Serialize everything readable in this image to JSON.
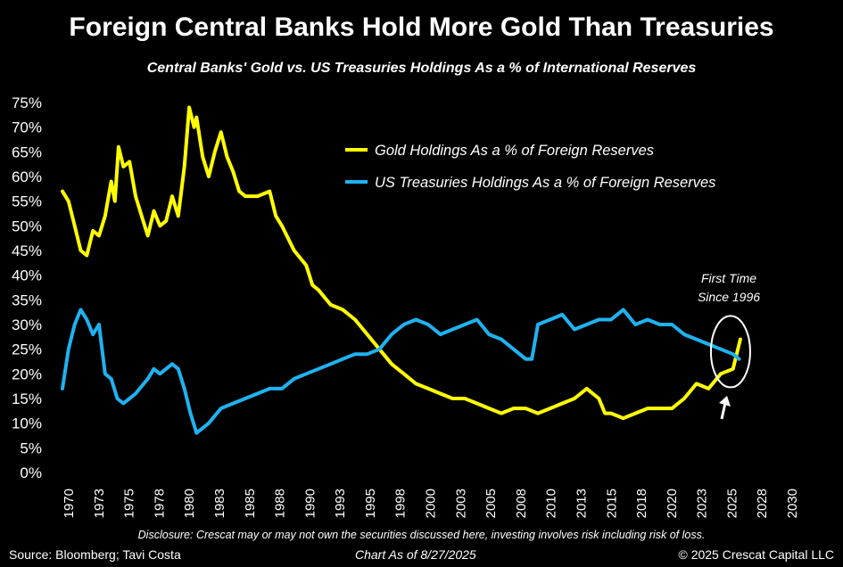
{
  "header": {
    "title": "Foreign Central Banks Hold More Gold Than Treasuries",
    "subtitle": "Central Banks' Gold vs. US Treasuries Holdings As a % of International Reserves"
  },
  "footer": {
    "source": "Source: Bloomberg; Tavi Costa",
    "as_of": "Chart As of 8/27/2025",
    "copyright": "© 2025 Crescat Capital LLC",
    "disclosure": "Disclosure: Crescat may or may not own the securities discussed here, investing involves risk including risk of loss."
  },
  "chart_data": {
    "type": "line",
    "title": "Foreign Central Banks Hold More Gold Than Treasuries",
    "subtitle": "Central Banks' Gold vs. US Treasuries Holdings As a % of International Reserves",
    "xlim": [
      1970,
      2030
    ],
    "ylim": [
      0,
      75
    ],
    "x_ticks": [
      "1970",
      "1973",
      "1975",
      "1978",
      "1980",
      "1983",
      "1985",
      "1988",
      "1990",
      "1993",
      "1995",
      "1998",
      "2000",
      "2003",
      "2005",
      "2008",
      "2010",
      "2013",
      "2015",
      "2018",
      "2020",
      "2023",
      "2025",
      "2028",
      "2030"
    ],
    "y_ticks": [
      "0%",
      "5%",
      "10%",
      "15%",
      "20%",
      "25%",
      "30%",
      "35%",
      "40%",
      "45%",
      "50%",
      "55%",
      "60%",
      "65%",
      "70%",
      "75%"
    ],
    "grid": false,
    "legend_position": "top-right",
    "annotation": {
      "text_line1": "First Time",
      "text_line2": "Since 1996",
      "x": 2024.8,
      "y": 24.5
    },
    "series": [
      {
        "name": "Gold Holdings As a % of Foreign Reserves",
        "color": "#ffff00",
        "points": [
          [
            1970,
            57
          ],
          [
            1970.5,
            55
          ],
          [
            1971,
            50
          ],
          [
            1971.5,
            45
          ],
          [
            1972,
            44
          ],
          [
            1972.5,
            49
          ],
          [
            1973,
            48
          ],
          [
            1973.5,
            52
          ],
          [
            1974,
            59
          ],
          [
            1974.3,
            55
          ],
          [
            1974.6,
            66
          ],
          [
            1975,
            62
          ],
          [
            1975.5,
            63
          ],
          [
            1976,
            56
          ],
          [
            1976.5,
            52
          ],
          [
            1977,
            48
          ],
          [
            1977.5,
            53
          ],
          [
            1978,
            50
          ],
          [
            1978.5,
            51
          ],
          [
            1979,
            56
          ],
          [
            1979.5,
            52
          ],
          [
            1980,
            62
          ],
          [
            1980.4,
            74
          ],
          [
            1980.8,
            70
          ],
          [
            1981,
            72
          ],
          [
            1981.5,
            64
          ],
          [
            1982,
            60
          ],
          [
            1982.5,
            65
          ],
          [
            1983,
            69
          ],
          [
            1983.5,
            64
          ],
          [
            1984,
            61
          ],
          [
            1984.5,
            57
          ],
          [
            1985,
            56
          ],
          [
            1986,
            56
          ],
          [
            1987,
            57
          ],
          [
            1987.5,
            52
          ],
          [
            1988,
            50
          ],
          [
            1989,
            45
          ],
          [
            1990,
            42
          ],
          [
            1990.5,
            38
          ],
          [
            1991,
            37
          ],
          [
            1992,
            34
          ],
          [
            1993,
            33
          ],
          [
            1994,
            31
          ],
          [
            1995,
            28
          ],
          [
            1996,
            25
          ],
          [
            1997,
            22
          ],
          [
            1998,
            20
          ],
          [
            1999,
            18
          ],
          [
            2000,
            17
          ],
          [
            2001,
            16
          ],
          [
            2002,
            15
          ],
          [
            2003,
            15
          ],
          [
            2004,
            14
          ],
          [
            2005,
            13
          ],
          [
            2006,
            12
          ],
          [
            2007,
            13
          ],
          [
            2008,
            13
          ],
          [
            2009,
            12
          ],
          [
            2010,
            13
          ],
          [
            2011,
            14
          ],
          [
            2012,
            15
          ],
          [
            2013,
            17
          ],
          [
            2014,
            15
          ],
          [
            2014.5,
            12
          ],
          [
            2015,
            12
          ],
          [
            2016,
            11
          ],
          [
            2017,
            12
          ],
          [
            2018,
            13
          ],
          [
            2019,
            13
          ],
          [
            2020,
            13
          ],
          [
            2020.5,
            14
          ],
          [
            2021,
            15
          ],
          [
            2022,
            18
          ],
          [
            2023,
            17
          ],
          [
            2024,
            20
          ],
          [
            2025,
            21
          ],
          [
            2025.3,
            24
          ],
          [
            2025.6,
            27
          ]
        ]
      },
      {
        "name": "US Treasuries Holdings As a % of Foreign Reserves",
        "color": "#1fb2f0",
        "points": [
          [
            1970,
            17
          ],
          [
            1970.5,
            25
          ],
          [
            1971,
            30
          ],
          [
            1971.5,
            33
          ],
          [
            1972,
            31
          ],
          [
            1972.5,
            28
          ],
          [
            1973,
            30
          ],
          [
            1973.5,
            20
          ],
          [
            1974,
            19
          ],
          [
            1974.5,
            15
          ],
          [
            1975,
            14
          ],
          [
            1975.5,
            15
          ],
          [
            1976,
            16
          ],
          [
            1977,
            19
          ],
          [
            1977.5,
            21
          ],
          [
            1978,
            20
          ],
          [
            1979,
            22
          ],
          [
            1979.5,
            21
          ],
          [
            1980,
            17
          ],
          [
            1980.5,
            12
          ],
          [
            1981,
            8
          ],
          [
            1981.5,
            9
          ],
          [
            1982,
            10
          ],
          [
            1983,
            13
          ],
          [
            1984,
            14
          ],
          [
            1985,
            15
          ],
          [
            1986,
            16
          ],
          [
            1987,
            17
          ],
          [
            1988,
            17
          ],
          [
            1989,
            19
          ],
          [
            1990,
            20
          ],
          [
            1991,
            21
          ],
          [
            1992,
            22
          ],
          [
            1993,
            23
          ],
          [
            1994,
            24
          ],
          [
            1995,
            24
          ],
          [
            1996,
            25
          ],
          [
            1997,
            28
          ],
          [
            1998,
            30
          ],
          [
            1999,
            31
          ],
          [
            2000,
            30
          ],
          [
            2001,
            28
          ],
          [
            2002,
            29
          ],
          [
            2003,
            30
          ],
          [
            2004,
            31
          ],
          [
            2005,
            28
          ],
          [
            2006,
            27
          ],
          [
            2007,
            25
          ],
          [
            2008,
            23
          ],
          [
            2008.5,
            23
          ],
          [
            2009,
            30
          ],
          [
            2010,
            31
          ],
          [
            2011,
            32
          ],
          [
            2012,
            29
          ],
          [
            2013,
            30
          ],
          [
            2014,
            31
          ],
          [
            2015,
            31
          ],
          [
            2016,
            33
          ],
          [
            2017,
            30
          ],
          [
            2018,
            31
          ],
          [
            2019,
            30
          ],
          [
            2020,
            30
          ],
          [
            2021,
            28
          ],
          [
            2022,
            27
          ],
          [
            2023,
            26
          ],
          [
            2024,
            25
          ],
          [
            2025,
            24
          ],
          [
            2025.5,
            23
          ]
        ]
      }
    ]
  }
}
